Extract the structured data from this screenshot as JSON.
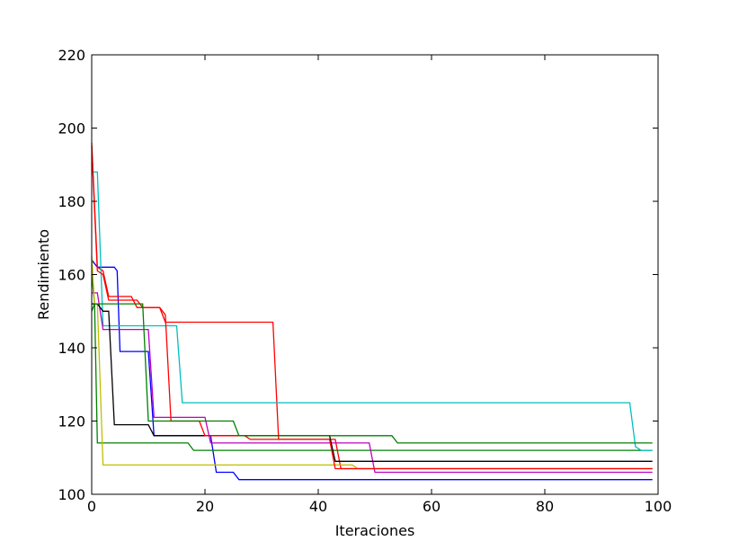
{
  "chart_data": {
    "type": "line",
    "title": "",
    "xlabel": "Iteraciones",
    "ylabel": "Rendimiento",
    "xlim": [
      0,
      100
    ],
    "ylim": [
      100,
      220
    ],
    "xticks": [
      0,
      20,
      40,
      60,
      80,
      100
    ],
    "yticks": [
      100,
      120,
      140,
      160,
      180,
      200,
      220
    ],
    "grid": false,
    "legend": "none",
    "series": [
      {
        "color": "#0000ff",
        "points": [
          [
            0,
            164
          ],
          [
            0.5,
            163
          ],
          [
            1,
            162
          ],
          [
            4,
            162
          ],
          [
            4.5,
            161
          ],
          [
            5,
            139
          ],
          [
            10,
            139
          ],
          [
            11,
            116
          ],
          [
            21,
            116
          ],
          [
            22,
            106
          ],
          [
            25,
            106
          ],
          [
            26,
            104
          ],
          [
            99,
            104
          ]
        ]
      },
      {
        "color": "#008000",
        "points": [
          [
            0,
            160
          ],
          [
            0.5,
            152
          ],
          [
            1,
            114
          ],
          [
            17,
            114
          ],
          [
            18,
            112
          ],
          [
            26,
            112
          ],
          [
            27,
            112
          ],
          [
            99,
            112
          ]
        ]
      },
      {
        "color": "#ff0000",
        "points": [
          [
            0,
            196
          ],
          [
            1,
            162
          ],
          [
            2,
            161
          ],
          [
            3,
            154
          ],
          [
            7,
            154
          ],
          [
            8,
            151
          ],
          [
            12,
            151
          ],
          [
            13,
            147
          ],
          [
            32,
            147
          ],
          [
            33,
            115
          ],
          [
            43,
            115
          ],
          [
            44,
            107
          ],
          [
            99,
            107
          ]
        ]
      },
      {
        "color": "#00bfbf",
        "points": [
          [
            0,
            188
          ],
          [
            1,
            188
          ],
          [
            2,
            146
          ],
          [
            15,
            146
          ],
          [
            16,
            125
          ],
          [
            95,
            125
          ],
          [
            96,
            113
          ],
          [
            97,
            112
          ],
          [
            99,
            112
          ]
        ]
      },
      {
        "color": "#bf00bf",
        "points": [
          [
            0,
            155
          ],
          [
            1,
            155
          ],
          [
            2,
            145
          ],
          [
            10,
            145
          ],
          [
            11,
            121
          ],
          [
            20,
            121
          ],
          [
            21,
            114
          ],
          [
            49,
            114
          ],
          [
            50,
            106
          ],
          [
            99,
            106
          ]
        ]
      },
      {
        "color": "#bfbf00",
        "points": [
          [
            0,
            165
          ],
          [
            0.5,
            152
          ],
          [
            1,
            152
          ],
          [
            2,
            108
          ],
          [
            46,
            108
          ],
          [
            47,
            107
          ],
          [
            99,
            107
          ]
        ]
      },
      {
        "color": "#000000",
        "points": [
          [
            0,
            152
          ],
          [
            1,
            152
          ],
          [
            2,
            150
          ],
          [
            3,
            150
          ],
          [
            4,
            119
          ],
          [
            10,
            119
          ],
          [
            11,
            116
          ],
          [
            42,
            116
          ],
          [
            43,
            109
          ],
          [
            99,
            109
          ]
        ]
      },
      {
        "color": "#ff0000",
        "points": [
          [
            0,
            195
          ],
          [
            1,
            161
          ],
          [
            2,
            160
          ],
          [
            3,
            153
          ],
          [
            8,
            153
          ],
          [
            9,
            151
          ],
          [
            12,
            151
          ],
          [
            13,
            149
          ],
          [
            14,
            120
          ],
          [
            19,
            120
          ],
          [
            20,
            116
          ],
          [
            27,
            116
          ],
          [
            28,
            115
          ],
          [
            42,
            115
          ],
          [
            43,
            107
          ],
          [
            99,
            107
          ]
        ]
      },
      {
        "color": "#008000",
        "points": [
          [
            0,
            150
          ],
          [
            0.5,
            152
          ],
          [
            9,
            152
          ],
          [
            10,
            120
          ],
          [
            25,
            120
          ],
          [
            26,
            116
          ],
          [
            53,
            116
          ],
          [
            54,
            114
          ],
          [
            99,
            114
          ]
        ]
      }
    ]
  }
}
